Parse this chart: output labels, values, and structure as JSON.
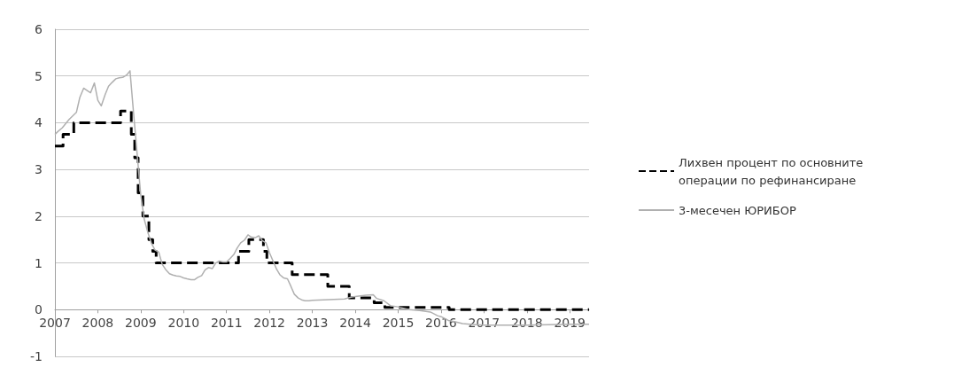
{
  "chart_data": {
    "type": "line",
    "xlim": [
      2007,
      2019.45
    ],
    "xticks": [
      2007,
      2008,
      2009,
      2010,
      2011,
      2012,
      2013,
      2014,
      2015,
      2016,
      2017,
      2018,
      2019
    ],
    "ylim": [
      -1,
      6
    ],
    "yticks": [
      -1,
      0,
      1,
      2,
      3,
      4,
      5,
      6
    ],
    "grid": "y",
    "legend": "right",
    "marker": "none",
    "series": [
      {
        "name": "Лихвен процент по основните операции по рефинансиране",
        "type": "step",
        "color": "#000000",
        "line_style": "dashed",
        "x": [
          2007.0,
          2007.19,
          2007.44,
          2008.53,
          2008.78,
          2008.86,
          2008.94,
          2009.05,
          2009.19,
          2009.28,
          2009.36,
          2011.28,
          2011.52,
          2011.86,
          2011.94,
          2012.53,
          2013.36,
          2013.86,
          2014.44,
          2014.69,
          2016.19,
          2019.45
        ],
        "values": [
          3.5,
          3.75,
          4.0,
          4.25,
          3.75,
          3.25,
          2.5,
          2.0,
          1.5,
          1.25,
          1.0,
          1.25,
          1.5,
          1.25,
          1.0,
          0.75,
          0.5,
          0.25,
          0.15,
          0.05,
          0.0,
          0.0
        ]
      },
      {
        "name": "3-месечен ЮРИБОР",
        "type": "line",
        "color": "#b0b0b0",
        "line_style": "solid",
        "x": [
          2007.0,
          2007.08,
          2007.17,
          2007.25,
          2007.33,
          2007.42,
          2007.5,
          2007.58,
          2007.67,
          2007.75,
          2007.83,
          2007.92,
          2008.0,
          2008.08,
          2008.17,
          2008.25,
          2008.33,
          2008.42,
          2008.5,
          2008.58,
          2008.67,
          2008.75,
          2008.83,
          2008.92,
          2009.0,
          2009.08,
          2009.17,
          2009.25,
          2009.33,
          2009.42,
          2009.5,
          2009.58,
          2009.67,
          2009.75,
          2009.83,
          2009.92,
          2010.0,
          2010.08,
          2010.17,
          2010.25,
          2010.33,
          2010.42,
          2010.5,
          2010.58,
          2010.67,
          2010.75,
          2010.83,
          2010.92,
          2011.0,
          2011.08,
          2011.17,
          2011.25,
          2011.33,
          2011.42,
          2011.5,
          2011.58,
          2011.67,
          2011.75,
          2011.83,
          2011.92,
          2012.0,
          2012.08,
          2012.17,
          2012.25,
          2012.33,
          2012.42,
          2012.5,
          2012.58,
          2012.67,
          2012.75,
          2012.83,
          2012.92,
          2013.0,
          2013.25,
          2013.5,
          2013.75,
          2013.92,
          2014.08,
          2014.25,
          2014.42,
          2014.5,
          2014.67,
          2014.83,
          2015.0,
          2015.25,
          2015.5,
          2015.75,
          2015.92,
          2016.0,
          2016.17,
          2016.33,
          2016.5,
          2016.67,
          2017.0,
          2017.5,
          2018.0,
          2018.5,
          2019.0,
          2019.45
        ],
        "values": [
          3.75,
          3.82,
          3.89,
          3.98,
          4.07,
          4.15,
          4.22,
          4.54,
          4.74,
          4.69,
          4.64,
          4.85,
          4.48,
          4.36,
          4.6,
          4.78,
          4.86,
          4.94,
          4.96,
          4.97,
          5.02,
          5.11,
          4.24,
          3.29,
          2.46,
          1.94,
          1.64,
          1.42,
          1.28,
          1.23,
          0.97,
          0.86,
          0.77,
          0.74,
          0.72,
          0.71,
          0.68,
          0.66,
          0.64,
          0.64,
          0.69,
          0.73,
          0.85,
          0.9,
          0.88,
          1.0,
          1.04,
          1.02,
          1.02,
          1.09,
          1.18,
          1.32,
          1.43,
          1.49,
          1.6,
          1.55,
          1.54,
          1.58,
          1.48,
          1.43,
          1.22,
          1.05,
          0.86,
          0.74,
          0.68,
          0.66,
          0.5,
          0.33,
          0.25,
          0.21,
          0.19,
          0.19,
          0.2,
          0.21,
          0.22,
          0.23,
          0.27,
          0.29,
          0.31,
          0.32,
          0.24,
          0.19,
          0.08,
          0.06,
          0.0,
          -0.02,
          -0.05,
          -0.13,
          -0.15,
          -0.23,
          -0.26,
          -0.3,
          -0.31,
          -0.33,
          -0.33,
          -0.33,
          -0.32,
          -0.31,
          -0.31
        ]
      }
    ]
  }
}
